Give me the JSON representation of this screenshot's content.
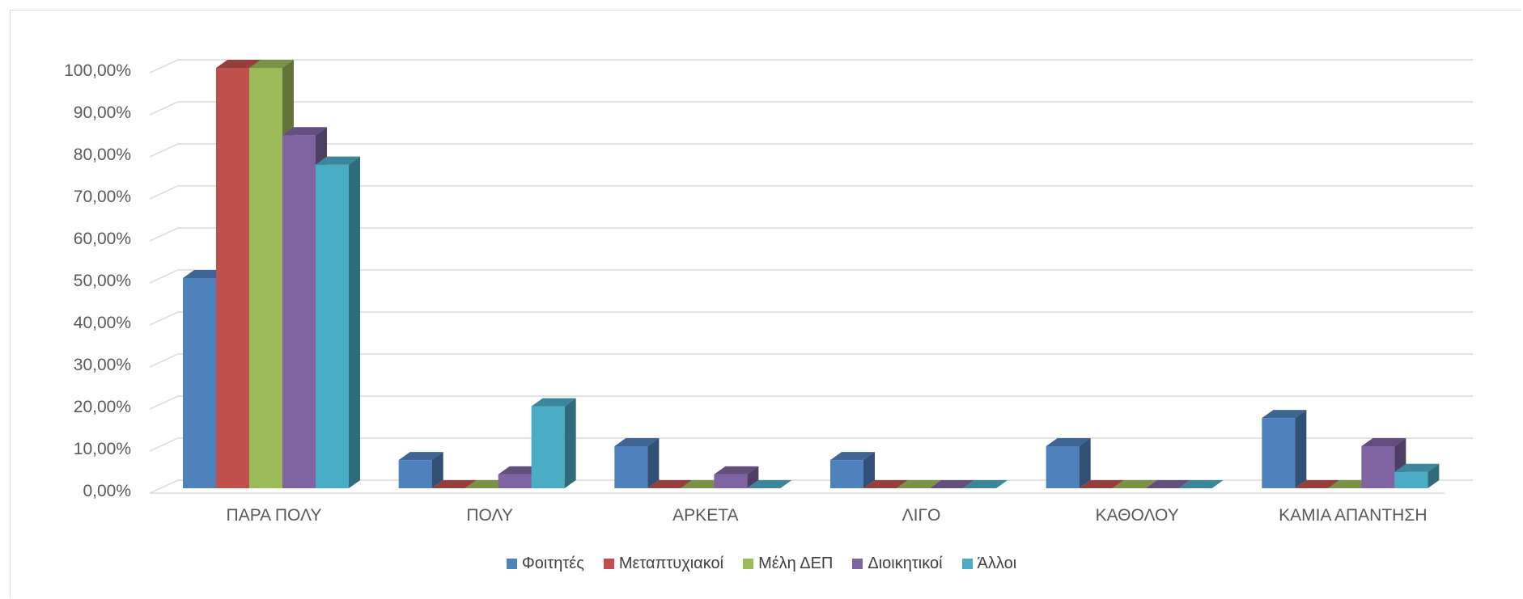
{
  "chart_data": {
    "type": "bar",
    "title": "",
    "xlabel": "",
    "ylabel": "",
    "ylim": [
      0,
      100
    ],
    "yticks": [
      "0,00%",
      "10,00%",
      "20,00%",
      "30,00%",
      "40,00%",
      "50,00%",
      "60,00%",
      "70,00%",
      "80,00%",
      "90,00%",
      "100,00%"
    ],
    "categories": [
      "ΠΑΡΑ ΠΟΛΥ",
      "ΠΟΛΥ",
      "ΑΡΚΕΤΑ",
      "ΛΙΓΟ",
      "ΚΑΘΟΛΟΥ",
      "ΚΑΜΙΑ ΑΠΑΝΤΗΣΗ"
    ],
    "series": [
      {
        "name": "Φοιτητές",
        "color": "#4f81bd",
        "values": [
          50,
          6.7,
          10,
          6.7,
          10,
          16.7
        ]
      },
      {
        "name": "Μεταπτυχιακοί",
        "color": "#c0504d",
        "values": [
          100,
          0,
          0,
          0,
          0,
          0
        ]
      },
      {
        "name": "Μέλη ΔΕΠ",
        "color": "#9bbb59",
        "values": [
          100,
          0,
          0,
          0,
          0,
          0
        ]
      },
      {
        "name": "Διοικητικοί",
        "color": "#8064a2",
        "values": [
          84,
          3.3,
          3.3,
          0,
          0,
          10
        ]
      },
      {
        "name": "Άλλοι",
        "color": "#4bacc6",
        "values": [
          77,
          19.5,
          0,
          0,
          0,
          3.9
        ]
      }
    ],
    "grid": true,
    "legend": "bottom",
    "style": "3d-clustered-column"
  }
}
